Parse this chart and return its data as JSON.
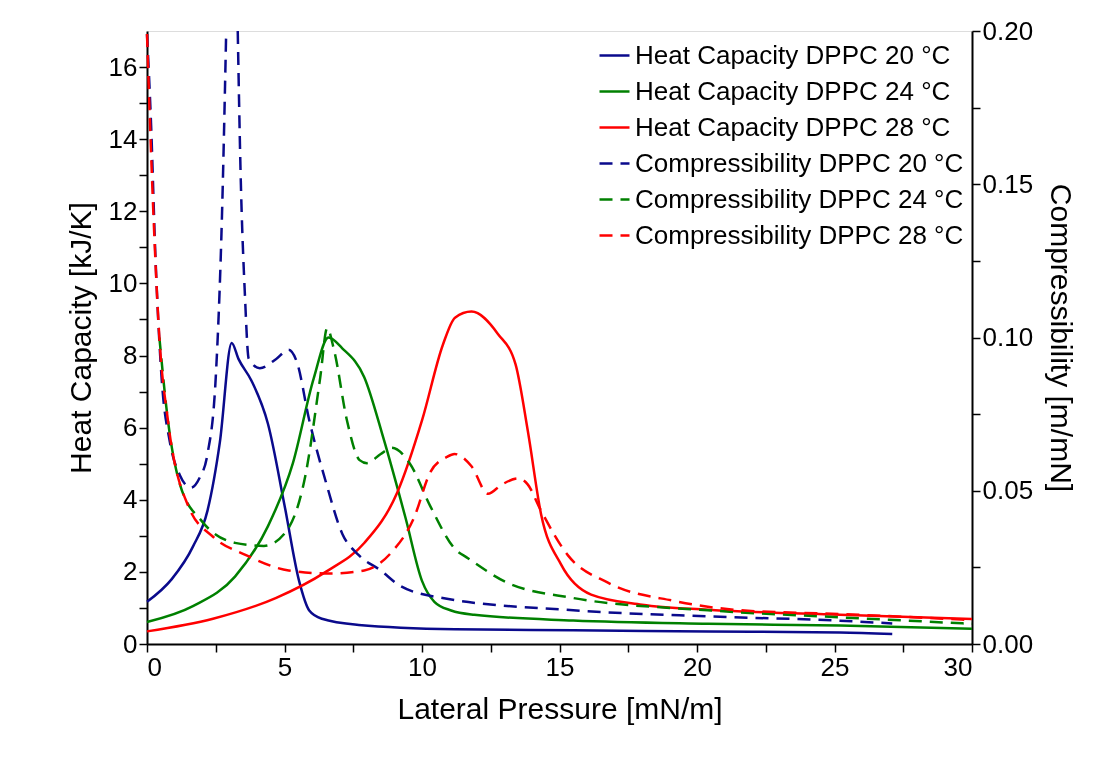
{
  "chart_data": {
    "type": "line",
    "xlabel": "Lateral Pressure [mN/m]",
    "ylabel": "Heat Capacity [kJ/K]",
    "y2label": "Compressibility [m/mN]",
    "xlim": [
      0,
      30
    ],
    "ylim": [
      0,
      17
    ],
    "y2lim": [
      0,
      0.2
    ],
    "xticks": [
      0,
      {
        "value": 2.5,
        "label": null
      },
      5,
      {
        "value": 7.5,
        "label": null
      },
      10,
      {
        "value": 12.5,
        "label": null
      },
      15,
      {
        "value": 17.5,
        "label": null
      },
      20,
      {
        "value": 22.5,
        "label": null
      },
      25,
      {
        "value": 27.5,
        "label": null
      },
      30
    ],
    "yticks": [
      0,
      {
        "value": 1,
        "label": null
      },
      2,
      {
        "value": 3,
        "label": null
      },
      4,
      {
        "value": 5,
        "label": null
      },
      6,
      {
        "value": 7,
        "label": null
      },
      8,
      {
        "value": 9,
        "label": null
      },
      10,
      {
        "value": 11,
        "label": null
      },
      12,
      {
        "value": 13,
        "label": null
      },
      14,
      {
        "value": 15,
        "label": null
      },
      16
    ],
    "y2ticks": [
      {
        "value": 0,
        "label": "0.00"
      },
      {
        "value": 0.025,
        "label": null
      },
      {
        "value": 0.05,
        "label": "0.05"
      },
      {
        "value": 0.075,
        "label": null
      },
      {
        "value": 0.1,
        "label": "0.10"
      },
      {
        "value": 0.125,
        "label": null
      },
      {
        "value": 0.15,
        "label": "0.15"
      },
      {
        "value": 0.175,
        "label": null
      },
      {
        "value": 0.2,
        "label": "0.20"
      }
    ],
    "legend": "top right",
    "grid": false,
    "series": [
      {
        "name": "Heat Capacity DPPC 20 °C",
        "color": "#0a0a8c",
        "line_style": "solid",
        "x": [
          0,
          0.9,
          1.67,
          2.2,
          2.65,
          3.08,
          3.33,
          3.8,
          4.4,
          5.0,
          5.53,
          5.9,
          6.36,
          7.7,
          11.2,
          15.5,
          20.4,
          25.2,
          27.1
        ],
        "values": [
          1.17,
          1.8,
          2.7,
          3.7,
          5.6,
          8.35,
          7.9,
          7.3,
          6.1,
          3.85,
          1.75,
          0.93,
          0.7,
          0.53,
          0.41,
          0.38,
          0.35,
          0.32,
          0.28
        ]
      },
      {
        "name": "Heat Capacity DPPC 24 °C",
        "color": "#008000",
        "line_style": "solid",
        "x": [
          0,
          1.67,
          3.2,
          4.4,
          5.3,
          6.06,
          6.6,
          7.1,
          7.9,
          8.6,
          9.4,
          10.0,
          10.45,
          11.06,
          11.9,
          15.5,
          20.4,
          25.2,
          30
        ],
        "values": [
          0.61,
          1.05,
          1.87,
          3.27,
          5.0,
          7.36,
          8.5,
          8.2,
          7.4,
          5.7,
          3.5,
          1.75,
          1.17,
          0.93,
          0.81,
          0.65,
          0.56,
          0.51,
          0.42
        ]
      },
      {
        "name": "Heat Capacity DPPC 28 °C",
        "color": "#ff0000",
        "line_style": "solid",
        "x": [
          0,
          2.4,
          4.7,
          6.5,
          7.9,
          9.1,
          10.0,
          10.76,
          11.2,
          11.8,
          12.76,
          13.4,
          13.85,
          14.33,
          15.06,
          16.15,
          18,
          20.4,
          25.2,
          30
        ],
        "values": [
          0.35,
          0.7,
          1.28,
          2.0,
          2.8,
          4.2,
          6.2,
          8.3,
          9.05,
          9.22,
          8.6,
          7.76,
          5.9,
          3.6,
          2.2,
          1.37,
          1.09,
          0.95,
          0.81,
          0.69
        ]
      },
      {
        "name": "Compressibility DPPC 20 °C",
        "color": "#0a0a8c",
        "line_style": "dashed",
        "axis": "y2",
        "x": [
          0,
          0.15,
          0.3,
          0.53,
          0.83,
          1.2,
          1.6,
          1.9,
          2.2,
          2.5,
          2.73,
          2.88,
          3.1,
          3.3,
          3.4,
          3.56,
          3.7,
          4.1,
          4.7,
          5.15,
          5.45,
          5.9,
          6.5,
          7.1,
          7.7,
          8.5,
          9.2,
          10.75,
          15.5,
          20.4,
          25.2,
          27.1
        ],
        "values": [
          0.199,
          0.169,
          0.128,
          0.087,
          0.066,
          0.055,
          0.051,
          0.054,
          0.062,
          0.087,
          0.141,
          0.2,
          null,
          0.2,
          0.155,
          0.114,
          0.093,
          0.09,
          0.093,
          0.096,
          0.092,
          0.073,
          0.053,
          0.036,
          0.029,
          0.024,
          0.019,
          0.015,
          0.011,
          0.009,
          0.0076,
          0.0067
        ]
      },
      {
        "name": "Compressibility DPPC 24 °C",
        "color": "#008000",
        "line_style": "dashed",
        "axis": "y2",
        "x": [
          0.45,
          0.76,
          1.2,
          2.0,
          3.2,
          4.25,
          5.0,
          5.76,
          6.3,
          6.55,
          6.8,
          7.27,
          7.73,
          8.0,
          8.5,
          8.9,
          9.55,
          10.3,
          11.2,
          11.67,
          13.1,
          15.5,
          20.4,
          25.2,
          30
        ],
        "values": [
          0.1,
          0.073,
          0.052,
          0.04,
          0.033,
          0.032,
          0.036,
          0.055,
          0.087,
          0.103,
          0.096,
          0.073,
          0.06,
          0.059,
          0.062,
          0.064,
          0.059,
          0.045,
          0.031,
          0.028,
          0.02,
          0.015,
          0.011,
          0.0087,
          0.0066
        ]
      },
      {
        "name": "Compressibility DPPC 28 °C",
        "color": "#ff0000",
        "line_style": "dashed",
        "axis": "y2",
        "x": [
          0,
          0.23,
          0.45,
          0.76,
          1.5,
          2.4,
          3.6,
          5.15,
          6.67,
          7.9,
          8.9,
          9.7,
          10.3,
          10.9,
          11.18,
          11.8,
          12.4,
          12.9,
          13.5,
          13.85,
          14.3,
          15.3,
          16.76,
          19.2,
          21.6,
          25.2,
          30
        ],
        "values": [
          0.199,
          0.141,
          0.1,
          0.073,
          0.045,
          0.035,
          0.029,
          0.024,
          0.023,
          0.024,
          0.03,
          0.041,
          0.056,
          0.061,
          0.062,
          0.058,
          0.049,
          0.052,
          0.054,
          0.052,
          0.044,
          0.029,
          0.02,
          0.014,
          0.011,
          0.0098,
          0.0078
        ]
      }
    ]
  }
}
